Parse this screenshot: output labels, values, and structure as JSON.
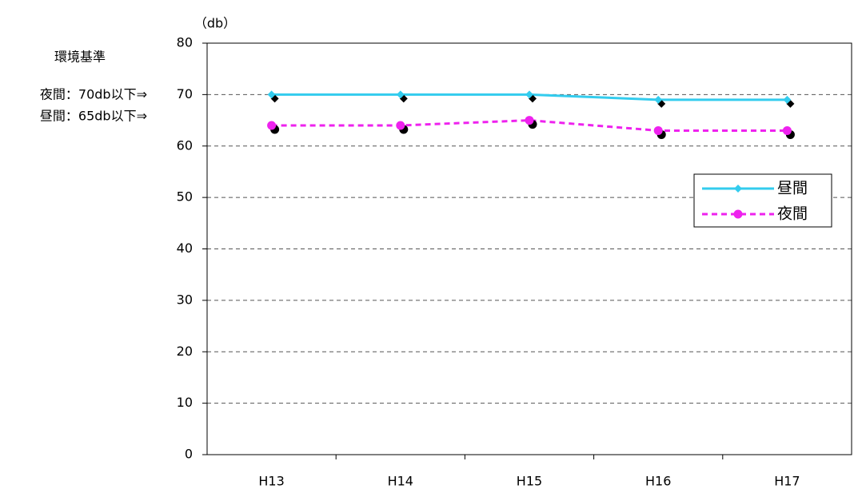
{
  "chart_data": {
    "type": "line",
    "y_label": "（db）",
    "annotations": [
      "環境基準",
      "夜間：70db以下⇒",
      "昼間：65db以下⇒"
    ],
    "categories": [
      "H13",
      "H14",
      "H15",
      "H16",
      "H17"
    ],
    "series": [
      {
        "name": "昼間",
        "color": "#33ccee",
        "marker": "diamond",
        "dash": false,
        "values": [
          70,
          70,
          70,
          69,
          69
        ]
      },
      {
        "name": "夜間",
        "color": "#ee22ee",
        "marker": "circle",
        "dash": true,
        "values": [
          64,
          64,
          65,
          63,
          63
        ]
      }
    ],
    "ylim": [
      0,
      80
    ],
    "yticks": [
      0,
      10,
      20,
      30,
      40,
      50,
      60,
      70,
      80
    ],
    "grid": true,
    "legend": "right"
  }
}
